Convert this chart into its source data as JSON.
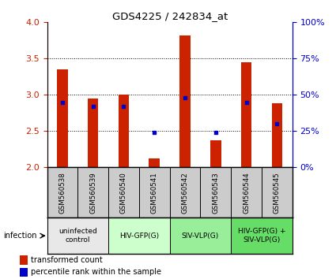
{
  "title": "GDS4225 / 242834_at",
  "samples": [
    "GSM560538",
    "GSM560539",
    "GSM560540",
    "GSM560541",
    "GSM560542",
    "GSM560543",
    "GSM560544",
    "GSM560545"
  ],
  "transformed_counts": [
    3.35,
    2.95,
    3.0,
    2.12,
    3.82,
    2.37,
    3.45,
    2.88
  ],
  "percentile_ranks": [
    45,
    42,
    42,
    24,
    48,
    24,
    45,
    30
  ],
  "ylim": [
    2.0,
    4.0
  ],
  "yticks": [
    2.0,
    2.5,
    3.0,
    3.5,
    4.0
  ],
  "right_yticks": [
    0,
    25,
    50,
    75,
    100
  ],
  "bar_color": "#cc2200",
  "dot_color": "#0000cc",
  "groups": [
    {
      "label": "uninfected\ncontrol",
      "start": 0,
      "end": 2,
      "color": "#e8e8e8"
    },
    {
      "label": "HIV-GFP(G)",
      "start": 2,
      "end": 4,
      "color": "#ccffcc"
    },
    {
      "label": "SIV-VLP(G)",
      "start": 4,
      "end": 6,
      "color": "#99ee99"
    },
    {
      "label": "HIV-GFP(G) +\nSIV-VLP(G)",
      "start": 6,
      "end": 8,
      "color": "#66dd66"
    }
  ],
  "legend_bar_label": "transformed count",
  "legend_dot_label": "percentile rank within the sample",
  "infection_label": "infection",
  "left_axis_color": "#cc2200",
  "right_axis_color": "#0000cc",
  "sample_bg_color": "#cccccc",
  "fig_width": 4.25,
  "fig_height": 3.54,
  "dpi": 100
}
